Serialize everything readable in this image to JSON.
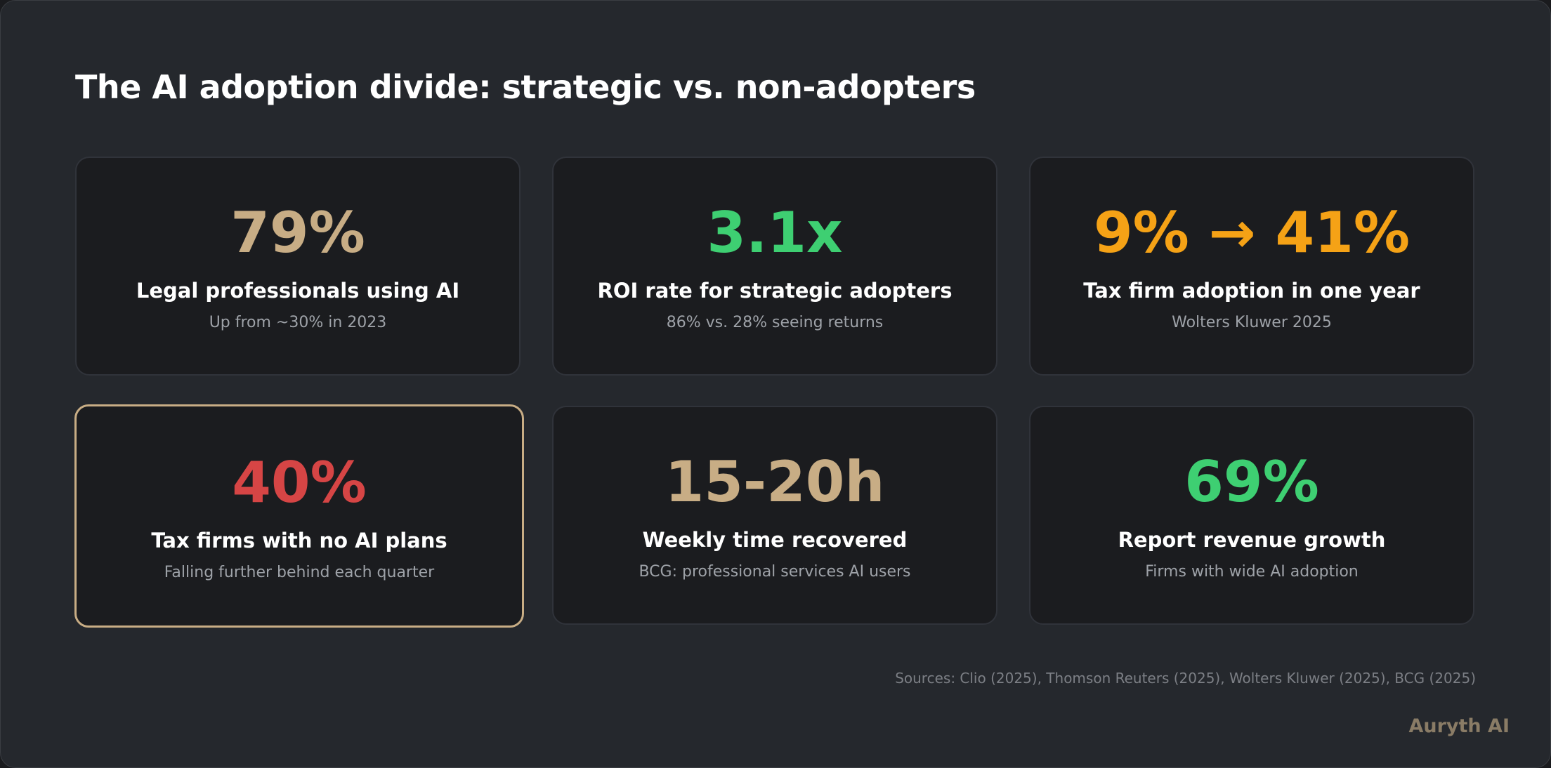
{
  "title": "The AI adoption divide: strategic vs. non-adopters",
  "colors": {
    "tan": "#c8ad85",
    "green": "#3ecf72",
    "orange": "#f5a216",
    "red": "#d64545"
  },
  "cards": [
    {
      "value": "79%",
      "label": "Legal professionals using AI",
      "sub": "Up from ~30% in 2023",
      "color": "#c8ad85"
    },
    {
      "value": "3.1x",
      "label": "ROI rate for strategic adopters",
      "sub": "86% vs. 28% seeing returns",
      "color": "#3ecf72"
    },
    {
      "value": "9% → 41%",
      "label": "Tax firm adoption in one year",
      "sub": "Wolters Kluwer 2025",
      "color": "#f5a216"
    },
    {
      "value": "40%",
      "label": "Tax firms with no AI plans",
      "sub": "Falling further behind each quarter",
      "color": "#d64545",
      "highlighted": true
    },
    {
      "value": "15-20h",
      "label": "Weekly time recovered",
      "sub": "BCG: professional services AI users",
      "color": "#c8ad85"
    },
    {
      "value": "69%",
      "label": "Report revenue growth",
      "sub": "Firms with wide AI adoption",
      "color": "#3ecf72"
    }
  ],
  "sources": "Sources: Clio (2025), Thomson Reuters (2025), Wolters Kluwer (2025), BCG (2025)",
  "brand": "Auryth AI"
}
